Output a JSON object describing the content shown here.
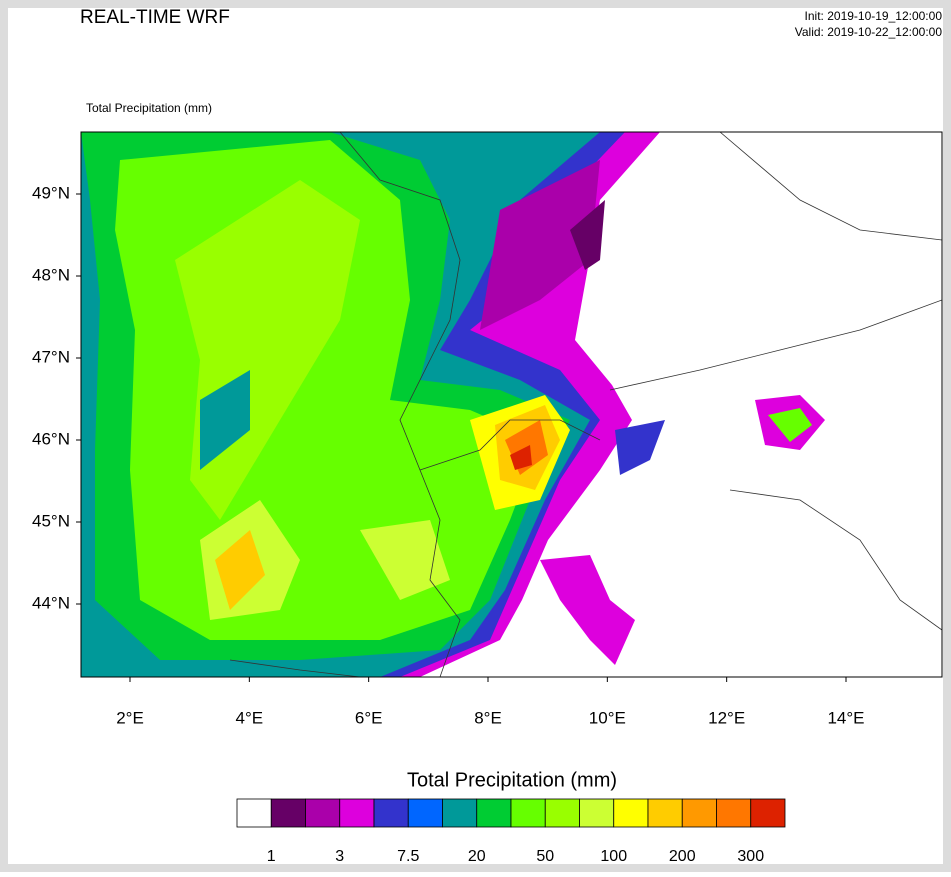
{
  "header": {
    "title": "REAL-TIME WRF",
    "init": "Init: 2019-10-19_12:00:00",
    "valid": "Valid: 2019-10-22_12:00:00"
  },
  "map": {
    "field_label": "Total Precipitation   (mm)",
    "lon_ticks": [
      {
        "value": 2,
        "label": "2°E"
      },
      {
        "value": 4,
        "label": "4°E"
      },
      {
        "value": 6,
        "label": "6°E"
      },
      {
        "value": 8,
        "label": "8°E"
      },
      {
        "value": 10,
        "label": "10°E"
      },
      {
        "value": 12,
        "label": "12°E"
      },
      {
        "value": 14,
        "label": "14°E"
      }
    ],
    "lat_ticks": [
      {
        "value": 44,
        "label": "44°N"
      },
      {
        "value": 45,
        "label": "45°N"
      },
      {
        "value": 46,
        "label": "46°N"
      },
      {
        "value": 47,
        "label": "47°N"
      },
      {
        "value": 48,
        "label": "48°N"
      },
      {
        "value": 49,
        "label": "49°N"
      }
    ]
  },
  "colorbar": {
    "title": "Total Precipitation  (mm)",
    "colors": [
      "#ffffff",
      "#660066",
      "#aa00aa",
      "#dd00dd",
      "#3333cc",
      "#0066ff",
      "#009999",
      "#00cc33",
      "#66ff00",
      "#99ff00",
      "#ccff33",
      "#ffff00",
      "#ffcc00",
      "#ff9900",
      "#ff7700",
      "#dd2200"
    ],
    "labels": [
      1,
      3,
      7.5,
      20,
      50,
      100,
      200,
      300
    ]
  }
}
